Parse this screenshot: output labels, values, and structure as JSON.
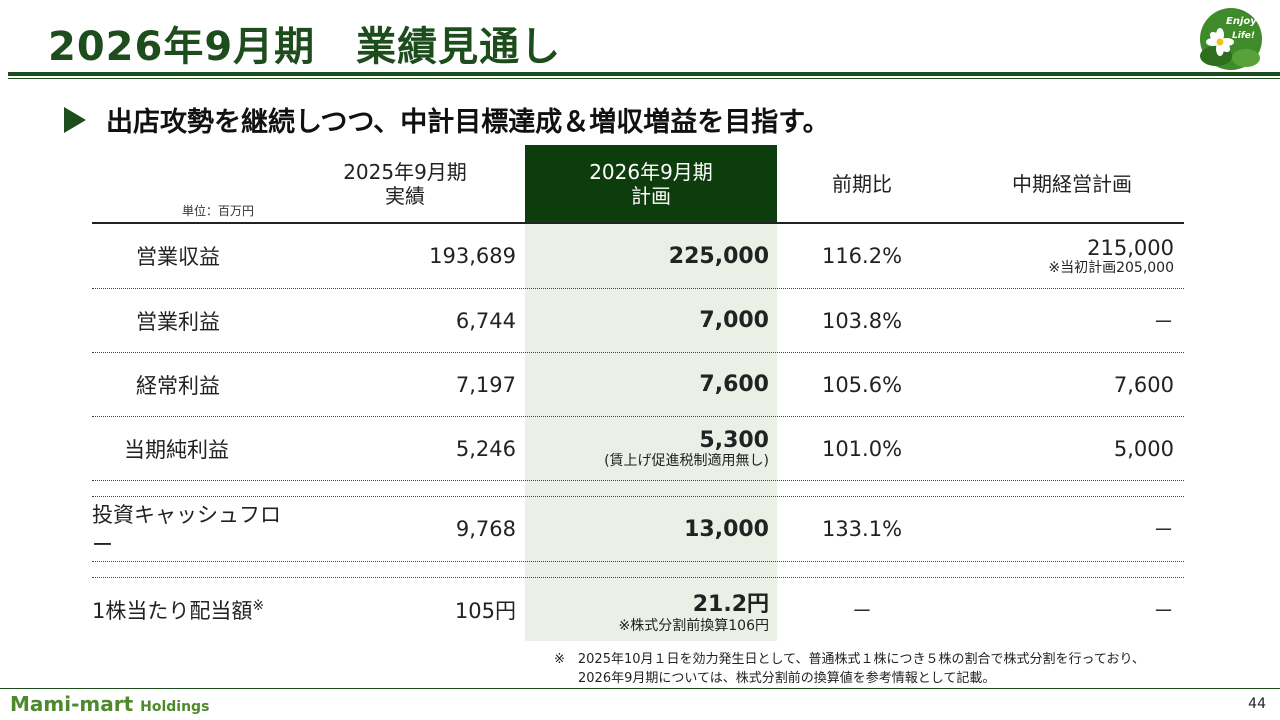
{
  "title": "2026年9月期　業績見通し",
  "logo_text": [
    "Enjoy",
    "Life!"
  ],
  "subtitle": "出店攻勢を継続しつつ、中計目標達成＆増収増益を目指す。",
  "unit": "単位：百万円",
  "headers": {
    "actual": [
      "2025年9月期",
      "実績"
    ],
    "plan": [
      "2026年9月期",
      "計画"
    ],
    "ratio": "前期比",
    "mid": "中期経営計画"
  },
  "rows": [
    {
      "label": "営業収益",
      "actual": "193,689",
      "plan": "225,000",
      "plan_note": "",
      "ratio": "116.2%",
      "mid": "215,000",
      "mid_note": "※当初計画205,000"
    },
    {
      "label": "営業利益",
      "actual": "6,744",
      "plan": "7,000",
      "plan_note": "",
      "ratio": "103.8%",
      "mid": "－",
      "mid_note": ""
    },
    {
      "label": "経常利益",
      "actual": "7,197",
      "plan": "7,600",
      "plan_note": "",
      "ratio": "105.6%",
      "mid": "7,600",
      "mid_note": ""
    },
    {
      "label": "当期純利益",
      "actual": "5,246",
      "plan": "5,300",
      "plan_note": "(賃上げ促進税制適用無し)",
      "ratio": "101.0%",
      "mid": "5,000",
      "mid_note": ""
    },
    {
      "label": "投資キャッシュフロー",
      "actual": "9,768",
      "plan": "13,000",
      "plan_note": "",
      "ratio": "133.1%",
      "mid": "－",
      "mid_note": ""
    },
    {
      "label": "1株当たり配当額",
      "label_sup": "※",
      "actual": "105円",
      "plan": "21.2円",
      "plan_note": "※株式分割前換算106円",
      "ratio": "－",
      "mid": "－",
      "mid_note": ""
    }
  ],
  "footnote": [
    "※　2025年10月１日を効力発生日として、普通株式１株につき５株の割合で株式分割を行っており、",
    "2026年9月期については、株式分割前の換算値を参考情報として記載。"
  ],
  "brand": {
    "name": "Mami-mart",
    "suffix": "Holdings"
  },
  "page_number": "44",
  "colors": {
    "accent": "#1d4d1d",
    "plan_header": "#0d3d0d",
    "plan_column": "#eaf0e6",
    "brand": "#4e8a2d"
  }
}
